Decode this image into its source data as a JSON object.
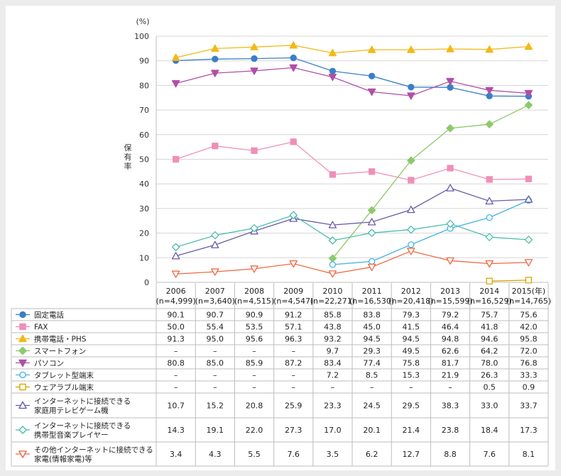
{
  "chart_data": {
    "type": "line",
    "ylabel": "保有率",
    "yunit": "(%)",
    "xunit": "(年)",
    "ylim": [
      0,
      100
    ],
    "yticks": [
      0,
      10,
      20,
      30,
      40,
      50,
      60,
      70,
      80,
      90,
      100
    ],
    "grid": true,
    "legend_position": "bottom-table",
    "categories": [
      "2006",
      "2007",
      "2008",
      "2009",
      "2010",
      "2011",
      "2012",
      "2013",
      "2014",
      "2015"
    ],
    "sample_sizes": [
      "(n=4,999)",
      "(n=3,640)",
      "(n=4,515)",
      "(n=4,547)",
      "(n=22,271)",
      "(n=16,530)",
      "(n=20,418)",
      "(n=15,599)",
      "(n=16,529)",
      "(n=14,765)"
    ],
    "series": [
      {
        "name": "固定電話",
        "color": "#3a7ec6",
        "marker": "circle",
        "values": [
          90.1,
          90.7,
          90.9,
          91.2,
          85.8,
          83.8,
          79.3,
          79.2,
          75.7,
          75.6
        ]
      },
      {
        "name": "FAX",
        "color": "#ef8fb8",
        "marker": "square",
        "values": [
          50.0,
          55.4,
          53.5,
          57.1,
          43.8,
          45.0,
          41.5,
          46.4,
          41.8,
          42.0
        ]
      },
      {
        "name": "携帯電話・PHS",
        "color": "#f2b91a",
        "marker": "triangle-up",
        "values": [
          91.3,
          95.0,
          95.6,
          96.3,
          93.2,
          94.5,
          94.5,
          94.8,
          94.6,
          95.8
        ]
      },
      {
        "name": "スマートフォン",
        "color": "#8dc96b",
        "marker": "diamond",
        "values": [
          null,
          null,
          null,
          null,
          9.7,
          29.3,
          49.5,
          62.6,
          64.2,
          72.0
        ]
      },
      {
        "name": "パソコン",
        "color": "#b04fa6",
        "marker": "triangle-down",
        "values": [
          80.8,
          85.0,
          85.9,
          87.2,
          83.4,
          77.4,
          75.8,
          81.7,
          78.0,
          76.8
        ]
      },
      {
        "name": "タブレット型端末",
        "color": "#45b3e4",
        "marker": "circle-open",
        "values": [
          null,
          null,
          null,
          null,
          7.2,
          8.5,
          15.3,
          21.9,
          26.3,
          33.3
        ]
      },
      {
        "name": "ウェアラブル端末",
        "color": "#d9a400",
        "marker": "square-open",
        "values": [
          null,
          null,
          null,
          null,
          null,
          null,
          null,
          null,
          0.5,
          0.9
        ]
      },
      {
        "name": "インターネットに接続できる家庭用テレビゲーム機",
        "label_lines": [
          "インターネットに接続できる",
          "家庭用テレビゲーム機"
        ],
        "color": "#6a5ba8",
        "marker": "triangle-up-open",
        "values": [
          10.7,
          15.2,
          20.8,
          25.9,
          23.3,
          24.5,
          29.5,
          38.3,
          33.0,
          33.7
        ]
      },
      {
        "name": "インターネットに接続できる携帯型音楽プレイヤー",
        "label_lines": [
          "インターネットに接続できる",
          "携帯型音楽プレイヤー"
        ],
        "color": "#4dbdad",
        "marker": "diamond-open",
        "values": [
          14.3,
          19.1,
          22.0,
          27.3,
          17.0,
          20.1,
          21.4,
          23.8,
          18.4,
          17.3
        ]
      },
      {
        "name": "その他インターネットに接続できる家電(情報家電)等",
        "label_lines": [
          "その他インターネットに接続できる",
          "家電(情報家電)等"
        ],
        "color": "#ee6a43",
        "marker": "triangle-down-open",
        "values": [
          3.4,
          4.3,
          5.5,
          7.6,
          3.5,
          6.2,
          12.7,
          8.8,
          7.6,
          8.1
        ]
      }
    ],
    "missing_symbol": "–"
  }
}
